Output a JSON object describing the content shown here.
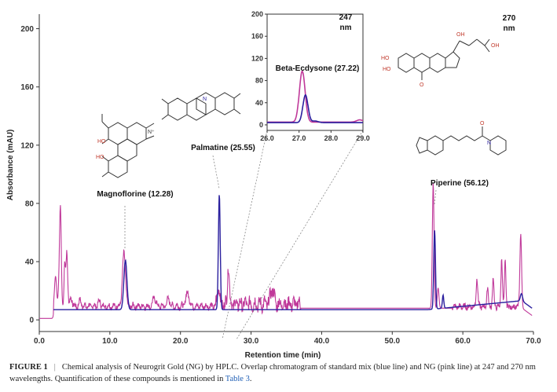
{
  "chart_data": {
    "type": "line",
    "xlabel": "Retention time (min)",
    "ylabel": "Absorbance (mAU)",
    "xlim": [
      0,
      70
    ],
    "ylim": [
      -8,
      210
    ],
    "x_ticks": [
      "0.0",
      "10.0",
      "20.0",
      "30.0",
      "40.0",
      "50.0",
      "60.0",
      "70.0"
    ],
    "y_ticks": [
      "0",
      "40",
      "80",
      "120",
      "160",
      "200"
    ],
    "wavelength_labels": [
      {
        "value": "247",
        "unit": "nm"
      },
      {
        "value": "270",
        "unit": "nm"
      }
    ],
    "series": [
      {
        "color": "#2a1f9e",
        "baseline": 7,
        "end": [
          69.8,
          8
        ],
        "drift": [
          [
            55,
            7
          ],
          [
            68,
            13
          ]
        ],
        "peaks": [
          [
            12.2,
            34,
            0.22
          ],
          [
            25.5,
            79,
            0.13
          ],
          [
            56.0,
            54,
            0.12
          ],
          [
            57.2,
            9,
            0.1
          ],
          [
            68.3,
            5,
            0.15
          ]
        ]
      },
      {
        "color": "#c0399a",
        "baseline": 8,
        "start": [
          0,
          1
        ],
        "end": [
          69.8,
          3
        ],
        "rise_at": 2.0,
        "noise": [
          [
            3.5,
            25,
            2.8,
            2.2
          ],
          [
            25.0,
            37,
            5.8,
            5.0
          ],
          [
            58.5,
            68,
            2.0,
            2.2
          ]
        ],
        "peaks": [
          [
            2.3,
            22,
            0.15
          ],
          [
            2.8,
            14,
            0.12
          ],
          [
            3.0,
            67,
            0.12
          ],
          [
            3.6,
            28,
            0.1
          ],
          [
            3.9,
            38,
            0.12
          ],
          [
            4.5,
            6,
            0.15
          ],
          [
            5.8,
            4,
            0.15
          ],
          [
            8.5,
            3,
            0.2
          ],
          [
            12.0,
            36,
            0.22
          ],
          [
            16.3,
            6,
            0.2
          ],
          [
            18.3,
            5,
            0.2
          ],
          [
            21.0,
            9,
            0.25
          ],
          [
            25.4,
            13,
            0.15
          ],
          [
            26.8,
            28,
            0.12
          ],
          [
            33.0,
            10,
            0.25
          ],
          [
            55.8,
            86,
            0.12
          ],
          [
            56.5,
            14,
            0.12
          ],
          [
            62.0,
            19,
            0.12
          ],
          [
            63.5,
            14,
            0.1
          ],
          [
            64.3,
            20,
            0.1
          ],
          [
            65.5,
            34,
            0.1
          ],
          [
            66.0,
            32,
            0.1
          ],
          [
            68.2,
            51,
            0.12
          ]
        ]
      }
    ],
    "peak_labels": [
      {
        "text": "Magnoflorine (12.28)",
        "x": 12.28,
        "y": 34
      },
      {
        "text": "Palmatine (25.55)",
        "x": 25.55,
        "y": 79
      },
      {
        "text": "Piperine (56.12)",
        "x": 56.12,
        "y": 86
      }
    ],
    "inset": {
      "label": "Beta-Ecdysone (27.22)",
      "xlim": [
        26.0,
        29.0
      ],
      "ylim": [
        -10,
        200
      ],
      "x_ticks": [
        "26.0",
        "27.0",
        "28.0",
        "29.0"
      ],
      "y_ticks": [
        "0",
        "40",
        "80",
        "120",
        "160",
        "200"
      ],
      "series": [
        {
          "color": "#c0399a",
          "baseline": 5,
          "peaks": [
            [
              27.1,
              92,
              0.09
            ],
            [
              28.9,
              4,
              0.1
            ]
          ]
        },
        {
          "color": "#2a1f9e",
          "baseline": 4,
          "peaks": [
            [
              27.2,
              50,
              0.08
            ],
            [
              27.5,
              3,
              0.1
            ]
          ]
        }
      ]
    }
  },
  "caption": {
    "label": "FIGURE 1",
    "separator": "|",
    "text_before_ref": "Chemical analysis of Neurogrit Gold (NG) by HPLC. Overlap chromatogram of standard mix (blue line) and NG (pink line) at 247 and 270 nm wavelengths. Quantification of these compounds is mentioned in ",
    "ref": "Table 3",
    "text_after_ref": "."
  },
  "colors": {
    "standard_mix": "#2a1f9e",
    "ng": "#c0399a",
    "axis": "#333333",
    "leader": "#8a8a8a"
  }
}
